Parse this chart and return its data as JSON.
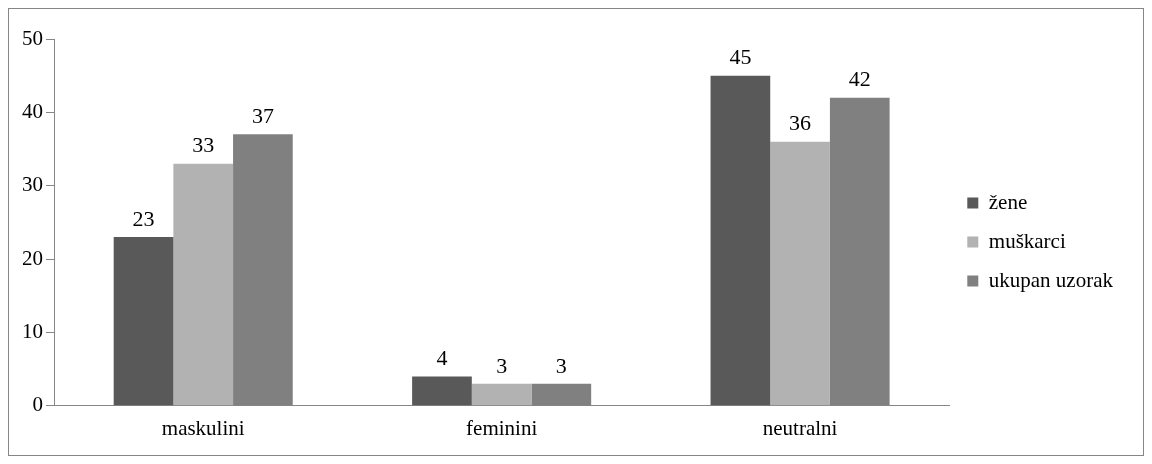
{
  "chart_data": {
    "type": "bar",
    "categories": [
      "maskulini",
      "feminini",
      "neutralni"
    ],
    "series": [
      {
        "name": "žene",
        "color": "#595959",
        "values": [
          23,
          4,
          45
        ]
      },
      {
        "name": "muškarci",
        "color": "#b2b2b2",
        "values": [
          33,
          3,
          36
        ]
      },
      {
        "name": "ukupan uzorak",
        "color": "#808080",
        "values": [
          37,
          3,
          42
        ]
      }
    ],
    "ylim": [
      0,
      50
    ],
    "yticks": [
      0,
      10,
      20,
      30,
      40,
      50
    ],
    "grid": false,
    "legend": "right",
    "data_labels": true
  }
}
